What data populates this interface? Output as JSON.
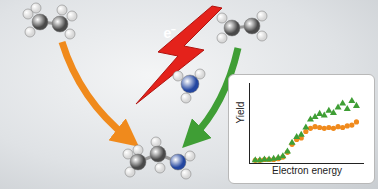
{
  "chart_data": {
    "type": "scatter",
    "x_label": "Electron energy",
    "y_label": "Yield",
    "x": [
      5,
      9,
      13,
      17,
      21,
      25,
      29,
      33,
      37,
      41,
      45,
      49,
      53,
      57,
      61,
      65,
      69,
      73,
      77,
      81,
      85,
      89,
      93
    ],
    "series": [
      {
        "color": "#f08a1c",
        "marker": "circle",
        "values": [
          4,
          4,
          5,
          5,
          5,
          6,
          8,
          14,
          24,
          30,
          32,
          40,
          44,
          46,
          45,
          44,
          45,
          44,
          46,
          45,
          47,
          48,
          52
        ]
      },
      {
        "color": "#3f9e35",
        "marker": "triangle",
        "values": [
          4,
          4,
          5,
          5,
          6,
          7,
          9,
          15,
          26,
          33,
          36,
          45,
          55,
          58,
          62,
          60,
          66,
          63,
          70,
          75,
          68,
          78,
          72
        ]
      }
    ],
    "xlim": [
      0,
      100
    ],
    "ylim": [
      0,
      100
    ],
    "tick_labels": false
  },
  "diagram": {
    "lightning_label": "e⁻"
  }
}
